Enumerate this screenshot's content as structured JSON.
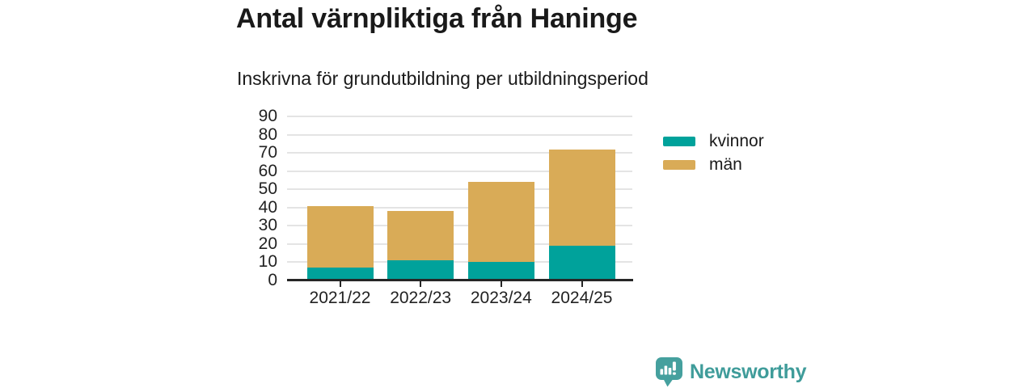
{
  "title": "Antal värnpliktiga från Haninge",
  "subtitle": "Inskrivna för grundutbildning per utbildningsperiod",
  "chart_data": {
    "type": "bar",
    "stacked": true,
    "title": "Antal värnpliktiga från Haninge",
    "subtitle": "Inskrivna för grundutbildning per utbildningsperiod",
    "categories": [
      "2021/22",
      "2022/23",
      "2023/24",
      "2024/25"
    ],
    "series": [
      {
        "name": "kvinnor",
        "color": "#00a29b",
        "values": [
          7,
          11,
          10,
          19
        ]
      },
      {
        "name": "män",
        "color": "#d9ab57",
        "values": [
          34,
          27,
          44,
          53
        ]
      }
    ],
    "stack_totals": [
      41,
      38,
      54,
      72
    ],
    "xlabel": "",
    "ylabel": "",
    "ylim": [
      0,
      90
    ],
    "ytick_step": 10,
    "grid": "horizontal",
    "legend_position": "right"
  },
  "footer": {
    "brand": "Newsworthy",
    "logo_icon": "bar-chart-speech-bubble-icon"
  },
  "colors": {
    "kvinnor": "#00a29b",
    "man": "#d9ab57",
    "brand": "#3f9c9a",
    "text": "#1a1a1a",
    "grid": "#e4e4e4",
    "axis": "#262626"
  }
}
